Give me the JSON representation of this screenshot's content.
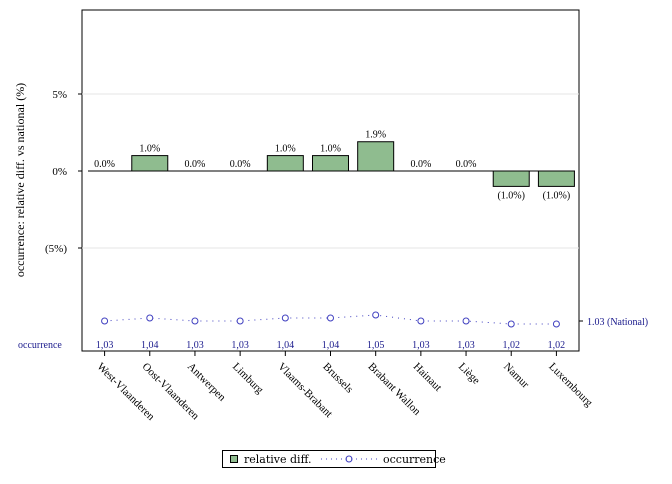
{
  "chart_data": {
    "type": "bar",
    "title": "",
    "ylabel": "occurrence: relative diff. vs national (%)",
    "xlabel": "",
    "categories": [
      "West-Vlaanderen",
      "Oost-Vlaanderen",
      "Antwerpen",
      "Limburg",
      "Vlaams-Brabant",
      "Brussels",
      "Brabant Wallon",
      "Hainaut",
      "Liège",
      "Namur",
      "Luxembourg"
    ],
    "ylim": [
      -10,
      10
    ],
    "yticks": [
      5,
      0,
      -5
    ],
    "ytick_labels": [
      "5%",
      "0%",
      "(5%)"
    ],
    "grid": true,
    "series": [
      {
        "name": "relative diff.",
        "type": "bar",
        "color": "#8fbc8f",
        "values": [
          0.0,
          1.0,
          0.0,
          0.0,
          1.0,
          1.0,
          1.9,
          0.0,
          0.0,
          -1.0,
          -1.0
        ],
        "labels": [
          "0.0%",
          "1.0%",
          "0.0%",
          "0.0%",
          "1.0%",
          "1.0%",
          "1.9%",
          "0.0%",
          "0.0%",
          "(1.0%)",
          "(1.0%)"
        ]
      },
      {
        "name": "occurrence",
        "type": "line",
        "color": "#4040c0",
        "values": [
          1.03,
          1.04,
          1.03,
          1.03,
          1.04,
          1.04,
          1.05,
          1.03,
          1.03,
          1.02,
          1.02
        ],
        "labels": [
          "1,03",
          "1,04",
          "1,03",
          "1,03",
          "1,04",
          "1,04",
          "1,05",
          "1,03",
          "1,03",
          "1,02",
          "1,02"
        ]
      }
    ],
    "reference": {
      "value": 1.03,
      "label": "1.03 (National)"
    },
    "row_label": "occurrence",
    "legend": {
      "position": "bottom",
      "items": [
        "relative diff.",
        "occurrence"
      ]
    }
  }
}
